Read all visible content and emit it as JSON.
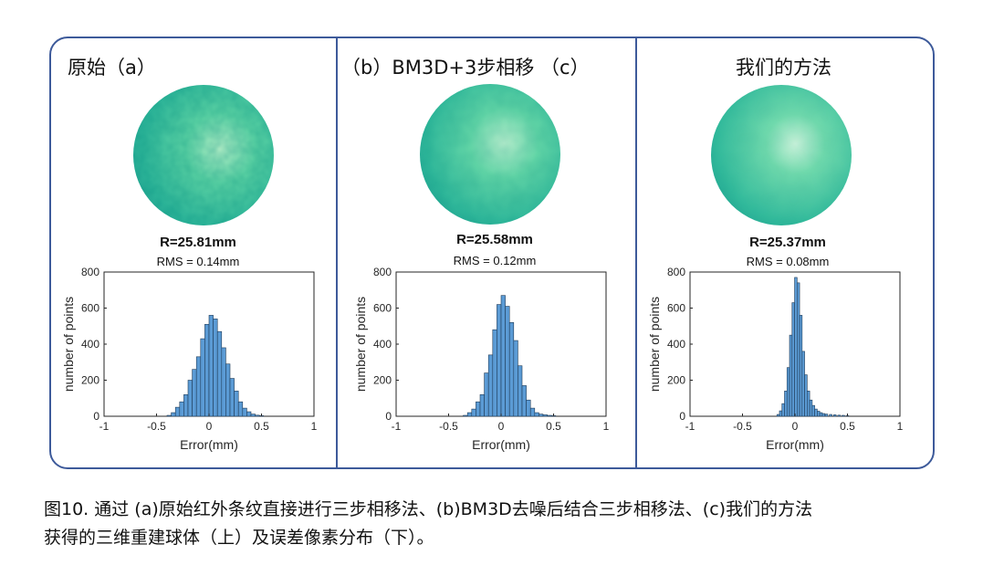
{
  "panels": [
    {
      "title": "原始（a）",
      "r_label": "R=25.81mm",
      "rms_label": "RMS = 0.14mm",
      "chart_data": {
        "type": "bar",
        "xlabel": "Error(mm)",
        "ylabel": "number of points",
        "xlim": [
          -1,
          1
        ],
        "ylim": [
          0,
          800
        ],
        "xticks": [
          "-1",
          "-0.5",
          "0",
          "0.5",
          "1"
        ],
        "yticks": [
          "0",
          "200",
          "400",
          "600",
          "800"
        ],
        "bin_width": 0.04,
        "bin_centers": [
          -0.38,
          -0.34,
          -0.3,
          -0.26,
          -0.22,
          -0.18,
          -0.14,
          -0.1,
          -0.06,
          -0.02,
          0.02,
          0.06,
          0.1,
          0.14,
          0.18,
          0.22,
          0.26,
          0.3,
          0.34,
          0.38,
          0.42,
          0.46,
          0.5
        ],
        "values": [
          5,
          20,
          50,
          80,
          120,
          200,
          260,
          330,
          430,
          510,
          560,
          540,
          470,
          380,
          290,
          210,
          140,
          80,
          45,
          25,
          12,
          6,
          3
        ],
        "bar_color": "#5b9bd5",
        "grid": false
      }
    },
    {
      "title": "（b）BM3D+3步相移 （c）",
      "r_label": "R=25.58mm",
      "rms_label": "RMS = 0.12mm",
      "chart_data": {
        "type": "bar",
        "xlabel": "Error(mm)",
        "ylabel": "number of points",
        "xlim": [
          -1,
          1
        ],
        "ylim": [
          0,
          800
        ],
        "xticks": [
          "-1",
          "-0.5",
          "0",
          "0.5",
          "1"
        ],
        "yticks": [
          "0",
          "200",
          "400",
          "600",
          "800"
        ],
        "bin_width": 0.04,
        "bin_centers": [
          -0.34,
          -0.3,
          -0.26,
          -0.22,
          -0.18,
          -0.14,
          -0.1,
          -0.06,
          -0.02,
          0.02,
          0.06,
          0.1,
          0.14,
          0.18,
          0.22,
          0.26,
          0.3,
          0.34,
          0.38,
          0.42,
          0.46,
          0.5
        ],
        "values": [
          5,
          20,
          40,
          80,
          120,
          240,
          340,
          480,
          620,
          670,
          610,
          520,
          420,
          280,
          170,
          90,
          45,
          20,
          12,
          8,
          5,
          3
        ],
        "bar_color": "#5b9bd5",
        "grid": false
      }
    },
    {
      "title": "我们的方法",
      "r_label": "R=25.37mm",
      "rms_label": "RMS = 0.08mm",
      "chart_data": {
        "type": "bar",
        "xlabel": "Error(mm)",
        "ylabel": "number of points",
        "xlim": [
          -1,
          1
        ],
        "ylim": [
          0,
          800
        ],
        "xticks": [
          "-1",
          "-0.5",
          "0",
          "0.5",
          "1"
        ],
        "yticks": [
          "0",
          "200",
          "400",
          "600",
          "800"
        ],
        "bin_width": 0.024,
        "bin_centers": [
          -0.16,
          -0.136,
          -0.112,
          -0.088,
          -0.064,
          -0.04,
          -0.016,
          0.008,
          0.032,
          0.056,
          0.08,
          0.104,
          0.128,
          0.152,
          0.176,
          0.2,
          0.224,
          0.248,
          0.272,
          0.3,
          0.34,
          0.38,
          0.42,
          0.46,
          0.5
        ],
        "values": [
          10,
          30,
          70,
          140,
          270,
          450,
          630,
          770,
          740,
          560,
          360,
          230,
          140,
          90,
          60,
          40,
          28,
          20,
          15,
          12,
          10,
          8,
          6,
          5,
          3
        ],
        "bar_color": "#5b9bd5",
        "grid": false
      }
    }
  ],
  "caption": {
    "line1": "图10. 通过 (a)原始红外条纹直接进行三步相移法、(b)BM3D去噪后结合三步相移法、(c)我们的方法",
    "line2": "获得的三维重建球体（上）及误差像素分布（下）。"
  },
  "colors": {
    "frame": "#3d5a9a",
    "bars": "#5b9bd5",
    "sphere_base": "#3fbf9a",
    "sphere_highlight": "#a8ecc8"
  }
}
